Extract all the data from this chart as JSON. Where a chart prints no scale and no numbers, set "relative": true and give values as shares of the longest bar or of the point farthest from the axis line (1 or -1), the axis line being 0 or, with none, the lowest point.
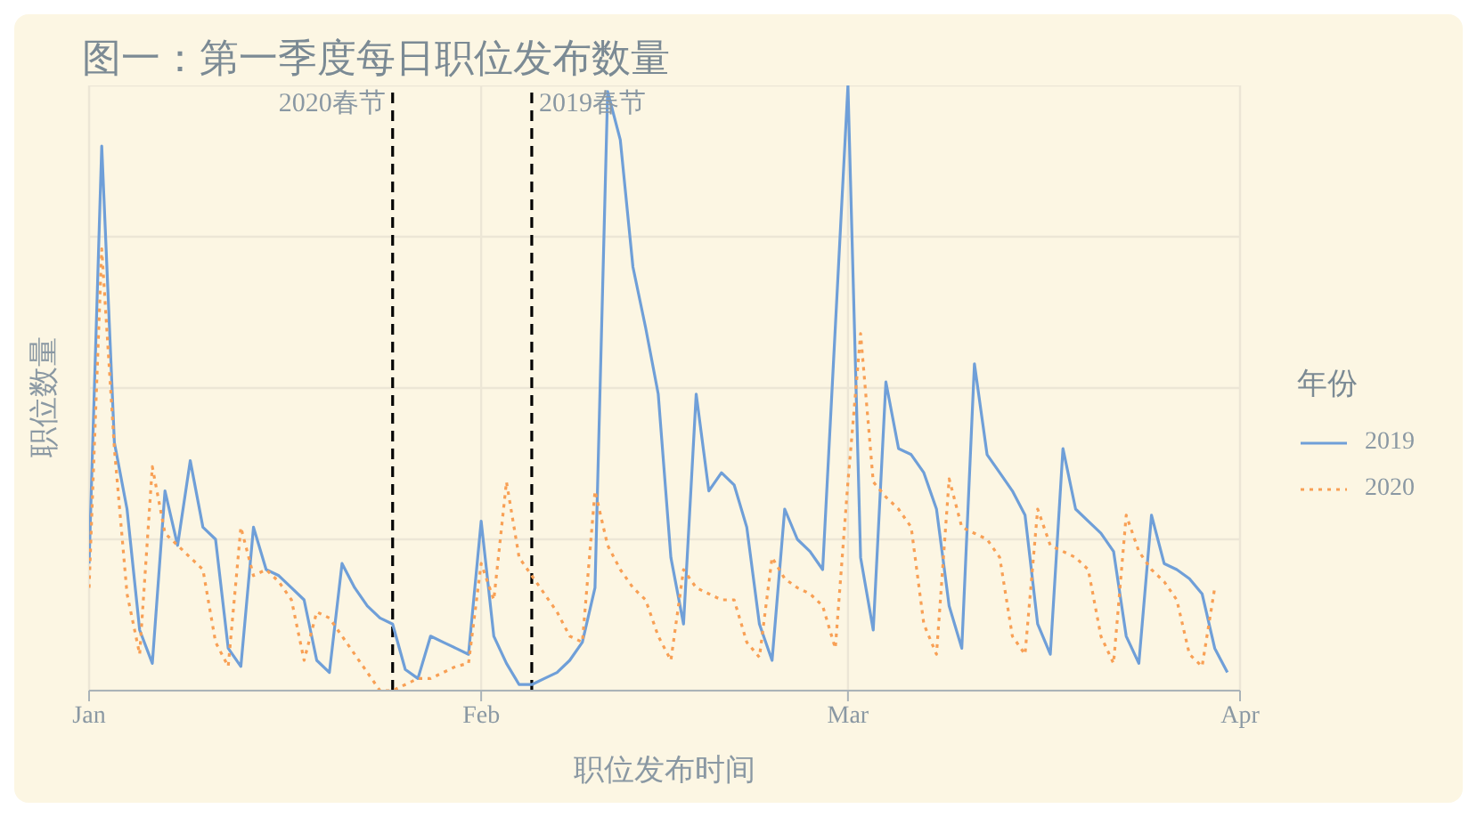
{
  "chart_data": {
    "type": "line",
    "title": "图一：第一季度每日职位发布数量",
    "xlabel": "职位发布时间",
    "ylabel": "职位数量",
    "legend_title": "年份",
    "relative": true,
    "grid": true,
    "legend": "right",
    "xlim": [
      "--01-01",
      "--04-01"
    ],
    "xticks": [
      {
        "value": "--01-01",
        "label": "Jan"
      },
      {
        "value": "--02-01",
        "label": "Feb"
      },
      {
        "value": "--03-01",
        "label": "Mar"
      },
      {
        "value": "--04-01",
        "label": "Apr"
      }
    ],
    "ref_lines": [
      {
        "axis": "x",
        "value": "--01-25",
        "label": "2020春节",
        "color": "#000000",
        "line_style": "dashed"
      },
      {
        "axis": "x",
        "value": "--02-05",
        "label": "2019春节",
        "color": "#000000",
        "line_style": "dashed"
      }
    ],
    "series": [
      {
        "name": "2019",
        "color": "#6f9fd8",
        "line_style": "solid",
        "x": [
          "--01-01",
          "--01-02",
          "--01-03",
          "--01-04",
          "--01-05",
          "--01-06",
          "--01-07",
          "--01-08",
          "--01-09",
          "--01-10",
          "--01-11",
          "--01-12",
          "--01-13",
          "--01-14",
          "--01-15",
          "--01-16",
          "--01-17",
          "--01-18",
          "--01-19",
          "--01-20",
          "--01-21",
          "--01-22",
          "--01-23",
          "--01-24",
          "--01-25",
          "--01-26",
          "--01-27",
          "--01-28",
          "--01-29",
          "--01-30",
          "--01-31",
          "--02-01",
          "--02-02",
          "--02-03",
          "--02-04",
          "--02-05",
          "--02-06",
          "--02-07",
          "--02-08",
          "--02-09",
          "--02-10",
          "--02-11",
          "--02-12",
          "--02-13",
          "--02-14",
          "--02-15",
          "--02-16",
          "--02-17",
          "--02-18",
          "--02-19",
          "--02-20",
          "--02-21",
          "--02-22",
          "--02-23",
          "--02-24",
          "--02-25",
          "--02-26",
          "--02-27",
          "--02-28",
          "--03-01",
          "--03-02",
          "--03-03",
          "--03-04",
          "--03-05",
          "--03-06",
          "--03-07",
          "--03-08",
          "--03-09",
          "--03-10",
          "--03-11",
          "--03-12",
          "--03-13",
          "--03-14",
          "--03-15",
          "--03-16",
          "--03-17",
          "--03-18",
          "--03-19",
          "--03-20",
          "--03-21",
          "--03-22",
          "--03-23",
          "--03-24",
          "--03-25",
          "--03-26",
          "--03-27",
          "--03-28",
          "--03-29",
          "--03-30",
          "--03-31"
        ],
        "values": [
          0.21,
          0.9,
          0.41,
          0.3,
          0.1,
          0.045,
          0.33,
          0.24,
          0.38,
          0.27,
          0.25,
          0.07,
          0.04,
          0.27,
          0.2,
          0.19,
          0.17,
          0.15,
          0.05,
          0.03,
          0.21,
          0.17,
          0.14,
          0.12,
          0.11,
          0.035,
          0.02,
          0.09,
          0.08,
          0.07,
          0.06,
          0.28,
          0.09,
          0.045,
          0.01,
          0.01,
          0.02,
          0.03,
          0.05,
          0.08,
          0.17,
          0.99,
          0.91,
          0.7,
          0.6,
          0.49,
          0.22,
          0.11,
          0.49,
          0.33,
          0.36,
          0.34,
          0.27,
          0.11,
          0.05,
          0.3,
          0.25,
          0.23,
          0.2,
          1,
          0.22,
          0.1,
          0.51,
          0.4,
          0.39,
          0.36,
          0.3,
          0.14,
          0.07,
          0.54,
          0.39,
          0.36,
          0.33,
          0.29,
          0.11,
          0.06,
          0.4,
          0.3,
          0.28,
          0.26,
          0.23,
          0.09,
          0.045,
          0.29,
          0.21,
          0.2,
          0.185,
          0.16,
          0.07,
          0.03
        ]
      },
      {
        "name": "2020",
        "color": "#f8a055",
        "line_style": "dotted",
        "x": [
          "--01-01",
          "--01-02",
          "--01-03",
          "--01-04",
          "--01-05",
          "--01-06",
          "--01-07",
          "--01-08",
          "--01-09",
          "--01-10",
          "--01-11",
          "--01-12",
          "--01-13",
          "--01-14",
          "--01-15",
          "--01-16",
          "--01-17",
          "--01-18",
          "--01-19",
          "--01-20",
          "--01-21",
          "--01-22",
          "--01-23",
          "--01-24",
          "--01-25",
          "--01-26",
          "--01-27",
          "--01-28",
          "--01-29",
          "--01-30",
          "--01-31",
          "--02-01",
          "--02-02",
          "--02-03",
          "--02-04",
          "--02-05",
          "--02-06",
          "--02-07",
          "--02-08",
          "--02-09",
          "--02-10",
          "--02-11",
          "--02-12",
          "--02-13",
          "--02-14",
          "--02-15",
          "--02-16",
          "--02-17",
          "--02-18",
          "--02-19",
          "--02-20",
          "--02-21",
          "--02-22",
          "--02-23",
          "--02-24",
          "--02-25",
          "--02-26",
          "--02-27",
          "--02-28",
          "--02-29",
          "--03-01",
          "--03-02",
          "--03-03",
          "--03-04",
          "--03-05",
          "--03-06",
          "--03-07",
          "--03-08",
          "--03-09",
          "--03-10",
          "--03-11",
          "--03-12",
          "--03-13",
          "--03-14",
          "--03-15",
          "--03-16",
          "--03-17",
          "--03-18",
          "--03-19",
          "--03-20",
          "--03-21",
          "--03-22",
          "--03-23",
          "--03-24",
          "--03-25",
          "--03-26",
          "--03-27",
          "--03-28",
          "--03-29",
          "--03-30"
        ],
        "values": [
          0.17,
          0.73,
          0.4,
          0.16,
          0.06,
          0.37,
          0.26,
          0.24,
          0.22,
          0.2,
          0.08,
          0.04,
          0.27,
          0.19,
          0.2,
          0.18,
          0.15,
          0.05,
          0.13,
          0.12,
          0.09,
          0.06,
          0.03,
          0,
          0,
          0.01,
          0.02,
          0.02,
          0.03,
          0.04,
          0.045,
          0.21,
          0.15,
          0.345,
          0.22,
          0.19,
          0.16,
          0.13,
          0.09,
          0.08,
          0.33,
          0.24,
          0.2,
          0.17,
          0.15,
          0.09,
          0.05,
          0.2,
          0.17,
          0.16,
          0.15,
          0.15,
          0.08,
          0.055,
          0.22,
          0.185,
          0.17,
          0.16,
          0.14,
          0.07,
          0.345,
          0.59,
          0.345,
          0.32,
          0.3,
          0.27,
          0.11,
          0.06,
          0.35,
          0.27,
          0.26,
          0.25,
          0.22,
          0.09,
          0.06,
          0.3,
          0.24,
          0.23,
          0.22,
          0.2,
          0.09,
          0.045,
          0.29,
          0.23,
          0.2,
          0.18,
          0.15,
          0.06,
          0.04,
          0.17
        ]
      }
    ]
  }
}
